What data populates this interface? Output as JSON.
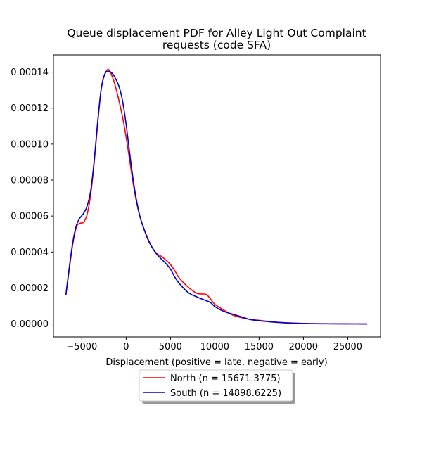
{
  "chart_data": {
    "type": "line",
    "title_lines": [
      "Queue displacement PDF for Alley Light Out Complaint",
      "requests (code SFA)"
    ],
    "xlabel": "Displacement (positive = late, negative = early)",
    "ylabel": "",
    "xlim": [
      -8200,
      28700
    ],
    "ylim": [
      -7.2e-06,
      0.0001496
    ],
    "xticks": [
      -5000,
      0,
      5000,
      10000,
      15000,
      20000,
      25000
    ],
    "xtick_labels": [
      "−5000",
      "0",
      "5000",
      "10000",
      "15000",
      "20000",
      "25000"
    ],
    "yticks": [
      0,
      2e-05,
      4e-05,
      6e-05,
      8e-05,
      0.0001,
      0.00012,
      0.00014
    ],
    "ytick_labels": [
      "0.00000",
      "0.00002",
      "0.00004",
      "0.00006",
      "0.00008",
      "0.00010",
      "0.00012",
      "0.00014"
    ],
    "grid": false,
    "legend_position": "below-center",
    "series": [
      {
        "name": "North (n = 15671.3775)",
        "color": "#ff0000",
        "x": [
          -6800,
          -6400,
          -6000,
          -5600,
          -5200,
          -4800,
          -4400,
          -4000,
          -3600,
          -3200,
          -2800,
          -2400,
          -2000,
          -1600,
          -1200,
          -800,
          -400,
          0,
          400,
          800,
          1200,
          1600,
          2000,
          2500,
          3000,
          3500,
          4000,
          4500,
          5000,
          5500,
          6000,
          7000,
          8000,
          9000,
          9500,
          10000,
          11000,
          12000,
          13000,
          14000,
          15000,
          16000,
          17000,
          18000,
          19000,
          20000,
          21000,
          22000,
          23000,
          24000,
          25000,
          26000,
          27200
        ],
        "y": [
          1.6e-05,
          3.1e-05,
          4.5e-05,
          5.4e-05,
          5.6e-05,
          5.65e-05,
          6.1e-05,
          7.2e-05,
          9e-05,
          0.000112,
          0.000131,
          0.000139,
          0.0001415,
          0.000138,
          0.000132,
          0.000124,
          0.000115,
          0.000104,
          9.1e-05,
          7.8e-05,
          6.7e-05,
          5.9e-05,
          5.3e-05,
          4.7e-05,
          4.2e-05,
          3.9e-05,
          3.75e-05,
          3.55e-05,
          3.3e-05,
          2.95e-05,
          2.55e-05,
          2.05e-05,
          1.7e-05,
          1.65e-05,
          1.4e-05,
          1.1e-05,
          7.8e-06,
          5e-06,
          3.5e-06,
          2.5e-06,
          2e-06,
          1.5e-06,
          1e-06,
          7e-07,
          5e-07,
          3e-07,
          2e-07,
          1.5e-07,
          1e-07,
          1e-07,
          5e-08,
          3e-08,
          2e-08
        ]
      },
      {
        "name": "South (n = 14898.6225)",
        "color": "#0000cc",
        "x": [
          -6800,
          -6400,
          -6000,
          -5600,
          -5200,
          -4800,
          -4400,
          -4000,
          -3600,
          -3200,
          -2800,
          -2400,
          -2000,
          -1600,
          -1200,
          -800,
          -400,
          0,
          400,
          800,
          1200,
          1600,
          2000,
          2500,
          3000,
          3500,
          4000,
          4500,
          5000,
          5500,
          6000,
          7000,
          8000,
          9000,
          9500,
          10000,
          11000,
          12000,
          13000,
          14000,
          15000,
          16000,
          17000,
          18000,
          19000,
          20000,
          21000,
          22000,
          23000,
          24000,
          25000,
          26000,
          27200
        ],
        "y": [
          1.6e-05,
          3.2e-05,
          4.6e-05,
          5.5e-05,
          5.9e-05,
          6.15e-05,
          6.55e-05,
          7.4e-05,
          9.1e-05,
          0.000113,
          0.000131,
          0.000139,
          0.0001405,
          0.0001395,
          0.0001365,
          0.000132,
          0.000124,
          0.000111,
          9.5e-05,
          8e-05,
          6.8e-05,
          5.9e-05,
          5.3e-05,
          4.65e-05,
          4.2e-05,
          3.85e-05,
          3.6e-05,
          3.35e-05,
          3.05e-05,
          2.6e-05,
          2.25e-05,
          1.75e-05,
          1.5e-05,
          1.3e-05,
          1.2e-05,
          9.7e-06,
          7e-06,
          5.5e-06,
          4e-06,
          2.5e-06,
          1.8e-06,
          1.3e-06,
          9e-07,
          6e-07,
          4e-07,
          2.5e-07,
          1.5e-07,
          1e-07,
          8e-08,
          6e-08,
          4e-08,
          3e-08,
          2e-08
        ]
      }
    ]
  }
}
